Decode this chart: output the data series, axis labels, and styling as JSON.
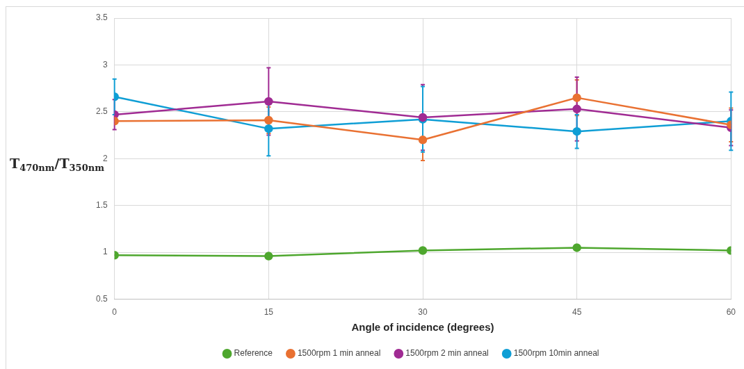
{
  "chart_data": {
    "type": "line",
    "xlabel": "Angle of incidence (degrees)",
    "ylabel": "T$_{470nm}$/T$_{350nm}$",
    "x": [
      0,
      15,
      30,
      45,
      60
    ],
    "xlim": [
      0,
      60
    ],
    "xticks": [
      0,
      15,
      30,
      45,
      60
    ],
    "ylim": [
      0.5,
      3.5
    ],
    "yticks": [
      0.5,
      1,
      1.5,
      2,
      2.5,
      3,
      3.5
    ],
    "grid": true,
    "legend": "bottom",
    "marker": "circle",
    "line_style": "solid",
    "series": [
      {
        "name": "Reference",
        "color": "#4ea72e",
        "values": [
          0.97,
          0.96,
          1.02,
          1.05,
          1.02
        ]
      },
      {
        "name": "1500rpm 1 min anneal",
        "color": "#e97132",
        "values": [
          2.4,
          2.41,
          2.2,
          2.65,
          2.36
        ],
        "errors": [
          null,
          0.14,
          0.22,
          0.19,
          0.18
        ]
      },
      {
        "name": "1500rpm 2 min anneal",
        "color": "#a02b93",
        "values": [
          2.47,
          2.61,
          2.44,
          2.53,
          2.33
        ],
        "errors": [
          0.16,
          0.36,
          0.35,
          0.34,
          0.19
        ]
      },
      {
        "name": "1500rpm 10min anneal",
        "color": "#0f9ed5",
        "values": [
          2.66,
          2.32,
          2.42,
          2.29,
          2.4
        ],
        "errors": [
          0.19,
          0.29,
          0.35,
          0.18,
          0.31
        ]
      }
    ]
  }
}
